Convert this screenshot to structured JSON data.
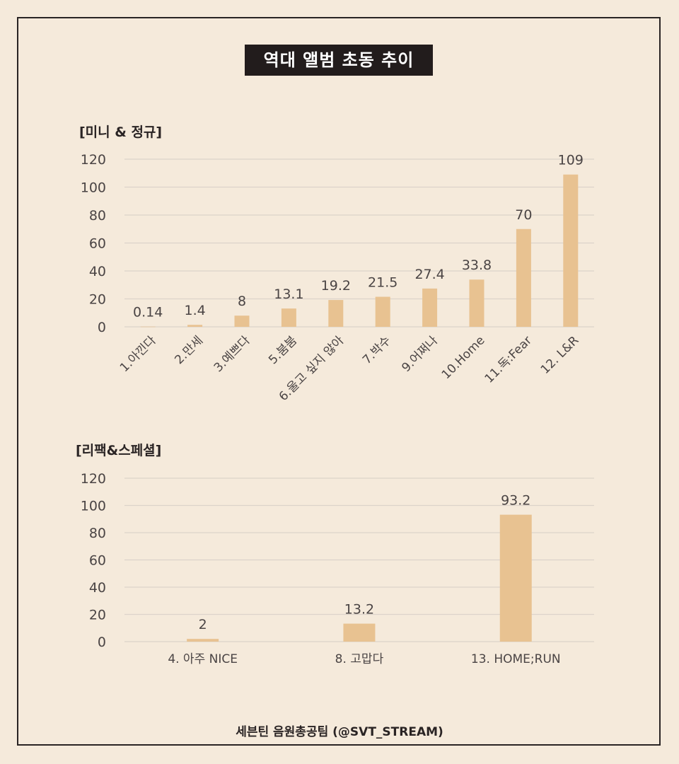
{
  "title": "역대 앨범 초동 추이",
  "footer": "세븐틴 음원총공팀 (@SVT_STREAM)",
  "colors": {
    "background": "#f5eadb",
    "bar": "#e8c291",
    "grid": "#dcd3ca",
    "text": "#4a4444",
    "title_bg": "#221c1c"
  },
  "chart_data": [
    {
      "type": "bar",
      "section_label": "[미니 & 정규]",
      "categories": [
        "1.아낀다",
        "2.만세",
        "3.예쁘다",
        "5.붐붐",
        "6.울고 싶지 않아",
        "7.박수",
        "9.어쩌나",
        "10.Home",
        "11.독:Fear",
        "12. L&R"
      ],
      "values": [
        0.14,
        1.4,
        8,
        13.1,
        19.2,
        21.5,
        27.4,
        33.8,
        70,
        109
      ],
      "value_labels": [
        "0.14",
        "1.4",
        "8",
        "13.1",
        "19.2",
        "21.5",
        "27.4",
        "33.8",
        "70",
        "109"
      ],
      "yticks": [
        "0",
        "20",
        "40",
        "60",
        "80",
        "100",
        "120"
      ],
      "ylim": [
        0,
        120
      ],
      "grid": true,
      "rotated_labels": true
    },
    {
      "type": "bar",
      "section_label": "[리팩&스페셜]",
      "categories": [
        "4. 아주 NICE",
        "8. 고맙다",
        "13. HOME;RUN"
      ],
      "values": [
        2,
        13.2,
        93.2
      ],
      "value_labels": [
        "2",
        "13.2",
        "93.2"
      ],
      "yticks": [
        "0",
        "20",
        "40",
        "60",
        "80",
        "100",
        "120"
      ],
      "ylim": [
        0,
        120
      ],
      "grid": true,
      "rotated_labels": false
    }
  ]
}
